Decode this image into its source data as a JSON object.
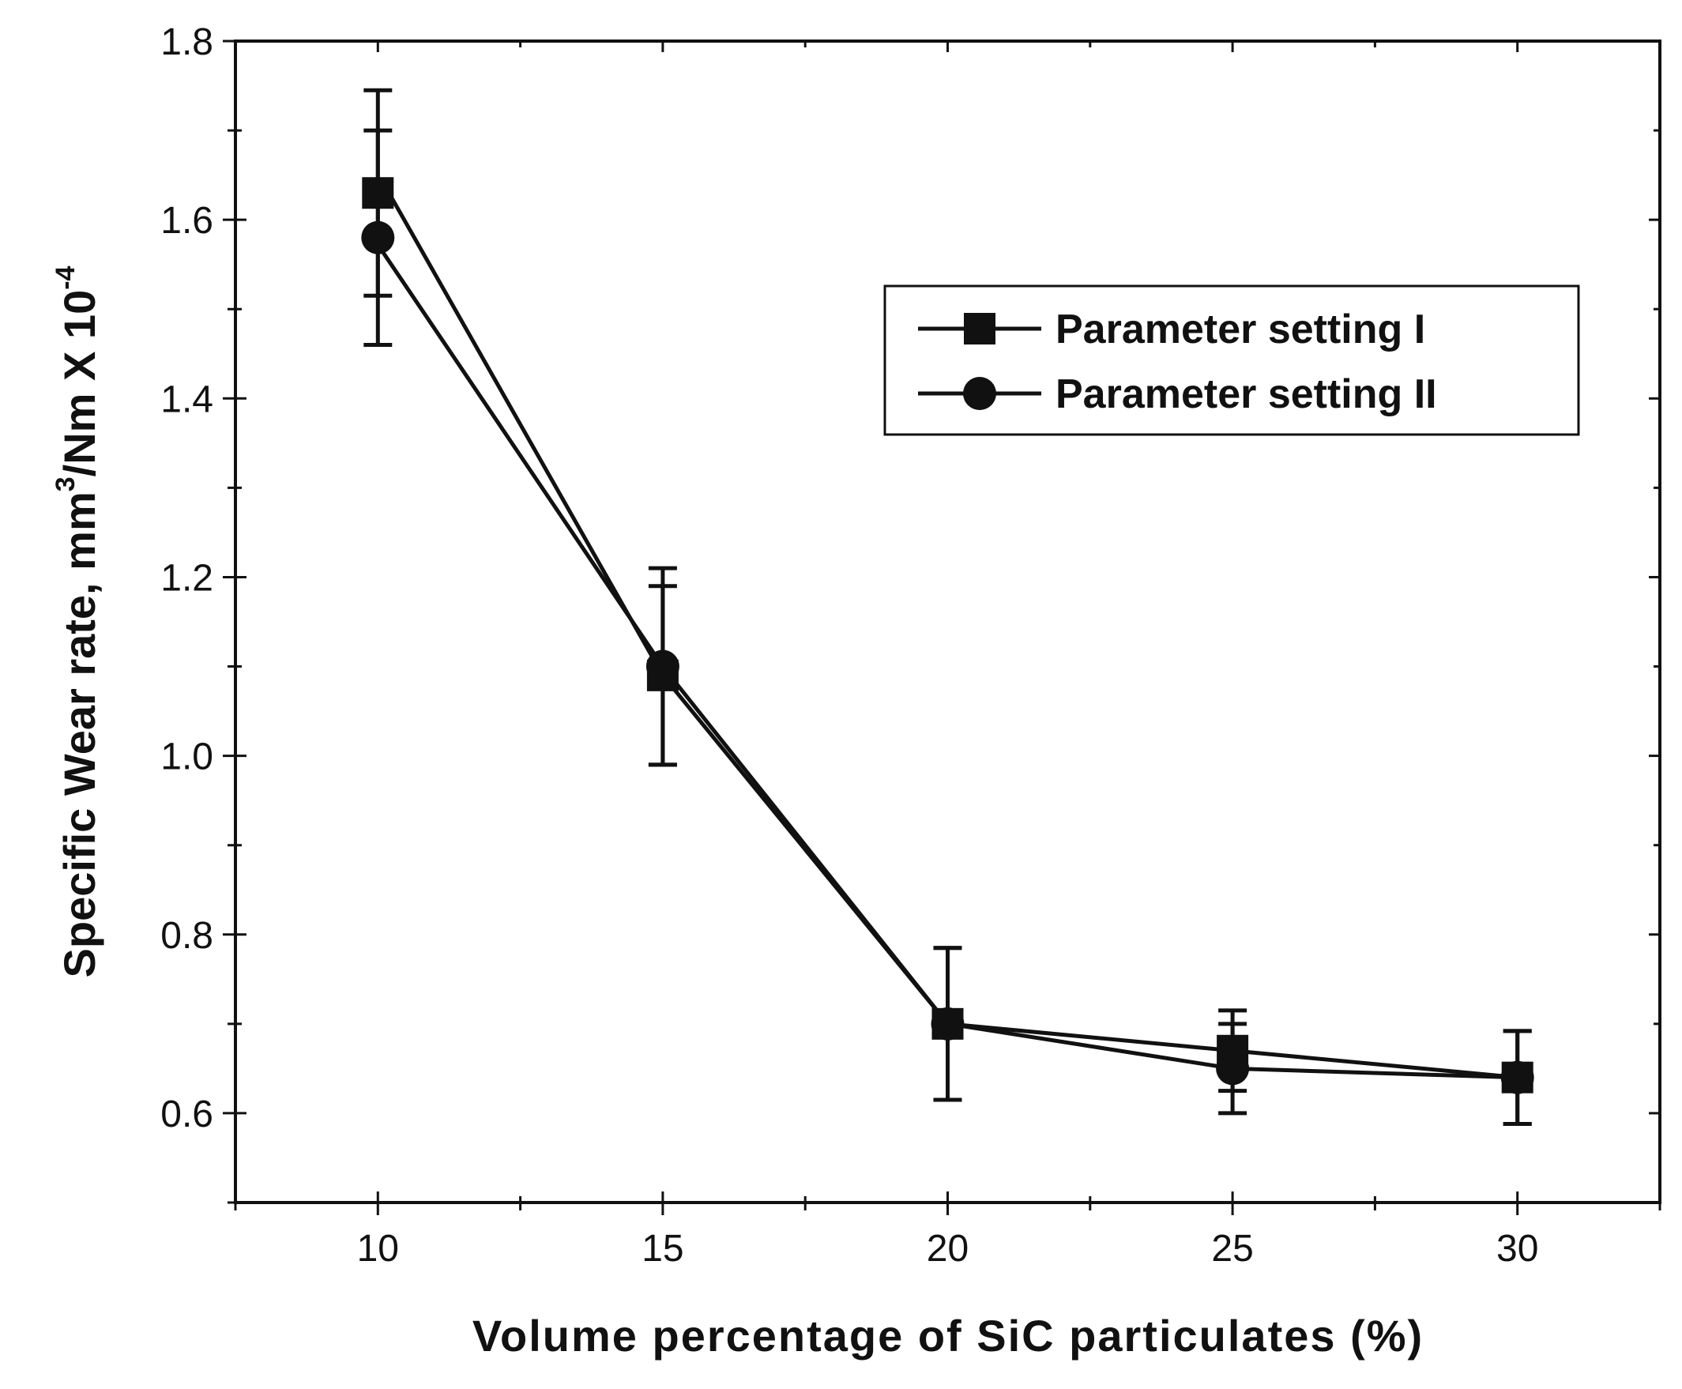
{
  "chart_data": {
    "type": "line",
    "title": "",
    "xlabel": "Volume percentage of SiC particulates (%)",
    "ylabel": {
      "prefix": "Specific Wear rate, mm",
      "sup1": "3",
      "middle": "/Nm X 10",
      "sup2": "-4"
    },
    "x": [
      10,
      15,
      20,
      25,
      30
    ],
    "xlim": [
      7.5,
      32.5
    ],
    "ylim": [
      0.5,
      1.8
    ],
    "xticks": [
      "10",
      "15",
      "20",
      "25",
      "30"
    ],
    "yticks": [
      "0.6",
      "0.8",
      "1.0",
      "1.2",
      "1.4",
      "1.6",
      "1.8"
    ],
    "grid": false,
    "legend_position": "top-right",
    "series": [
      {
        "name": "Parameter setting I",
        "marker": "square",
        "values": [
          1.63,
          1.09,
          0.7,
          0.67,
          0.64
        ],
        "errors": [
          0.115,
          0.1,
          0.085,
          0.045,
          0.052
        ]
      },
      {
        "name": "Parameter setting II",
        "marker": "circle",
        "values": [
          1.58,
          1.1,
          0.7,
          0.65,
          0.64
        ],
        "errors": [
          0.12,
          0.11,
          0.085,
          0.05,
          0.052
        ]
      }
    ]
  }
}
